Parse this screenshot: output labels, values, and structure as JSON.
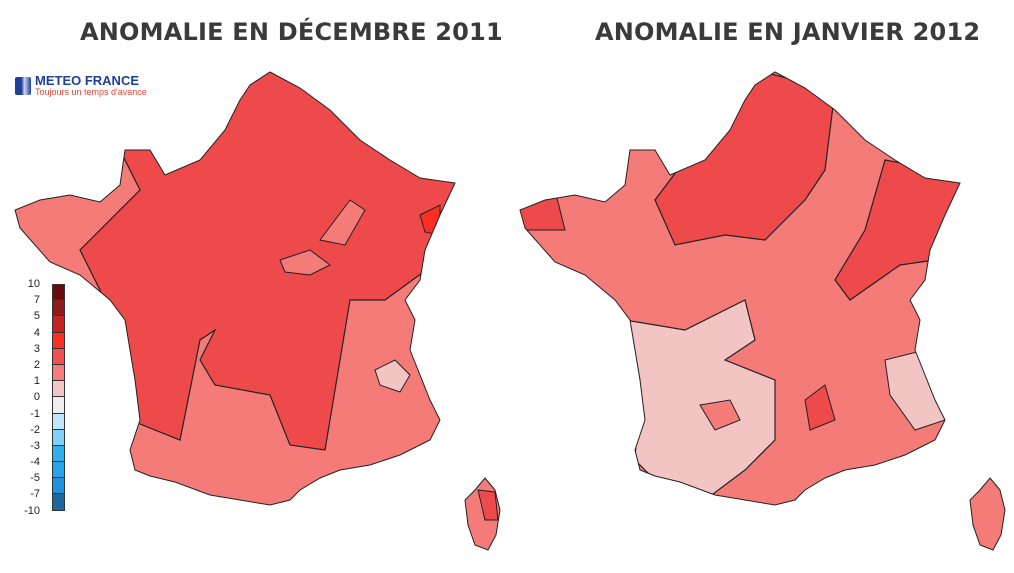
{
  "titles": {
    "left": "ANOMALIE EN DÉCEMBRE 2011",
    "right": "ANOMALIE EN JANVIER 2012"
  },
  "logo": {
    "name": "METEO FRANCE",
    "tagline": "Toujours un temps d'avance"
  },
  "legend": {
    "labels": [
      "10",
      "7",
      "5",
      "4",
      "3",
      "2",
      "1",
      "0",
      "-1",
      "-2",
      "-3",
      "-4",
      "-5",
      "-7",
      "-10"
    ],
    "colors": [
      "#6b0a0a",
      "#8e1a1a",
      "#c62222",
      "#ff2e22",
      "#f24f4f",
      "#f47c7c",
      "#f2c6c6",
      "#eeeeee",
      "#bfe6fb",
      "#7fd0fb",
      "#2db0ef",
      "#26a4ea",
      "#1d93db",
      "#1d67a0"
    ]
  },
  "map_colors": {
    "class_2_3": "#f47b77",
    "class_3_4": "#ee4a4b",
    "class_1_2": "#f3c4c4",
    "class_4_5": "#ff2e22"
  }
}
